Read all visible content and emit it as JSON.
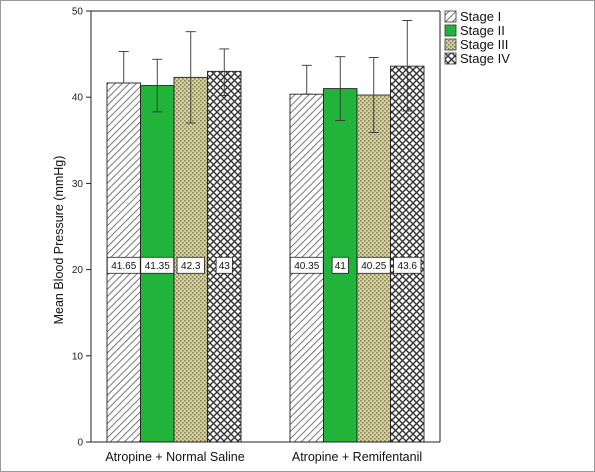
{
  "chart_data": {
    "type": "bar",
    "title": "",
    "xlabel": "",
    "ylabel": "Mean Blood Pressure (mmHg)",
    "ylim": [
      0,
      50
    ],
    "yticks": [
      0,
      10,
      20,
      30,
      40,
      50
    ],
    "grid": false,
    "legend_position": "top-right",
    "categories": [
      "Atropine + Normal Saline",
      "Atropine + Remifentanil"
    ],
    "series": [
      {
        "name": "Stage I",
        "pattern": "diagonal-hatch",
        "color": "#ffffff",
        "values": [
          41.65,
          40.35
        ],
        "value_labels": [
          "41.65",
          "40.35"
        ],
        "error": [
          [
            41.65,
            45.3
          ],
          [
            40.35,
            43.7
          ]
        ]
      },
      {
        "name": "Stage II",
        "pattern": "solid",
        "color": "#21b33a",
        "values": [
          41.35,
          41
        ],
        "value_labels": [
          "41.35",
          "41"
        ],
        "error": [
          [
            38.3,
            44.4
          ],
          [
            37.3,
            44.7
          ]
        ]
      },
      {
        "name": "Stage III",
        "pattern": "dotted",
        "color": "#d4cf9f",
        "values": [
          42.3,
          40.25
        ],
        "value_labels": [
          "42.3",
          "40.25"
        ],
        "error": [
          [
            37.0,
            47.6
          ],
          [
            35.9,
            44.6
          ]
        ]
      },
      {
        "name": "Stage IV",
        "pattern": "crosshatch",
        "color": "#ffffff",
        "values": [
          43,
          43.6
        ],
        "value_labels": [
          "43",
          "43.6"
        ],
        "error": [
          [
            40.2,
            45.6
          ],
          [
            38.4,
            48.9
          ]
        ]
      }
    ]
  }
}
